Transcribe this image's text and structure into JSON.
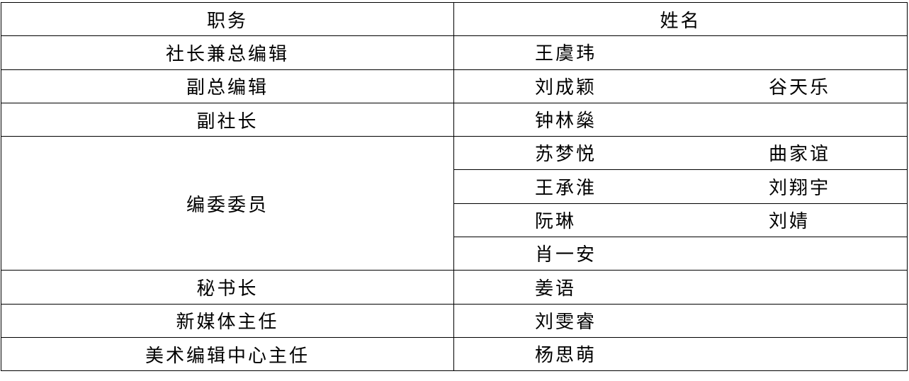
{
  "headers": {
    "role": "职务",
    "name": "姓名"
  },
  "rows": [
    {
      "role": "社长兼总编辑",
      "names": [
        [
          "王虞玮",
          ""
        ]
      ]
    },
    {
      "role": "副总编辑",
      "names": [
        [
          "刘成颖",
          "谷天乐"
        ]
      ]
    },
    {
      "role": "副社长",
      "names": [
        [
          "钟林燊",
          ""
        ]
      ]
    },
    {
      "role": "编委委员",
      "names": [
        [
          "苏梦悦",
          "曲家谊"
        ],
        [
          "王承淮",
          "刘翔宇"
        ],
        [
          "阮琳",
          "刘婧"
        ],
        [
          "肖一安",
          ""
        ]
      ]
    },
    {
      "role": "秘书长",
      "names": [
        [
          "姜语",
          ""
        ]
      ]
    },
    {
      "role": "新媒体主任",
      "names": [
        [
          "刘雯睿",
          ""
        ]
      ]
    },
    {
      "role": "美术编辑中心主任",
      "names": [
        [
          "杨思萌",
          ""
        ]
      ]
    }
  ]
}
